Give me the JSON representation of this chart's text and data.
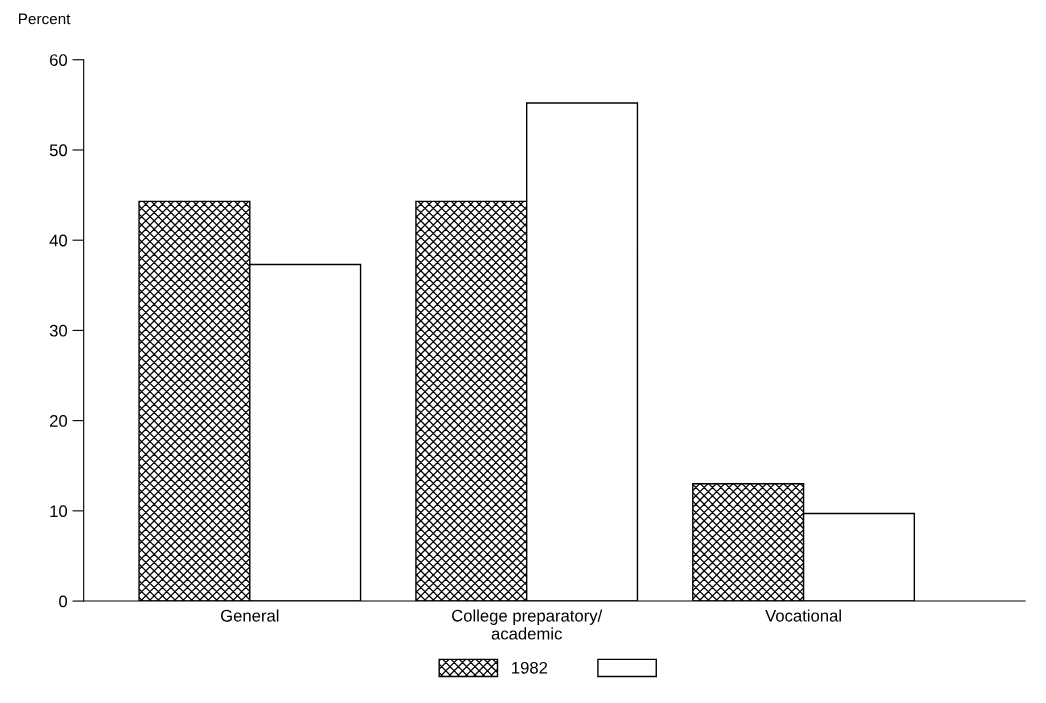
{
  "chart_data": {
    "type": "bar",
    "ylabel": "Percent",
    "categories": [
      "General",
      "College preparatory/\nacademic",
      "Vocational"
    ],
    "series": [
      {
        "name": "1982",
        "color": "#000000",
        "values": [
          44.3,
          44.3,
          13.0
        ]
      },
      {
        "color": "#ffffff",
        "values": [
          37.3,
          55.2,
          9.7
        ]
      }
    ],
    "ylim": [
      0,
      60
    ],
    "yticks": [
      0,
      10,
      20,
      30,
      40,
      50,
      60
    ],
    "grid": false,
    "legend": "bottom"
  }
}
